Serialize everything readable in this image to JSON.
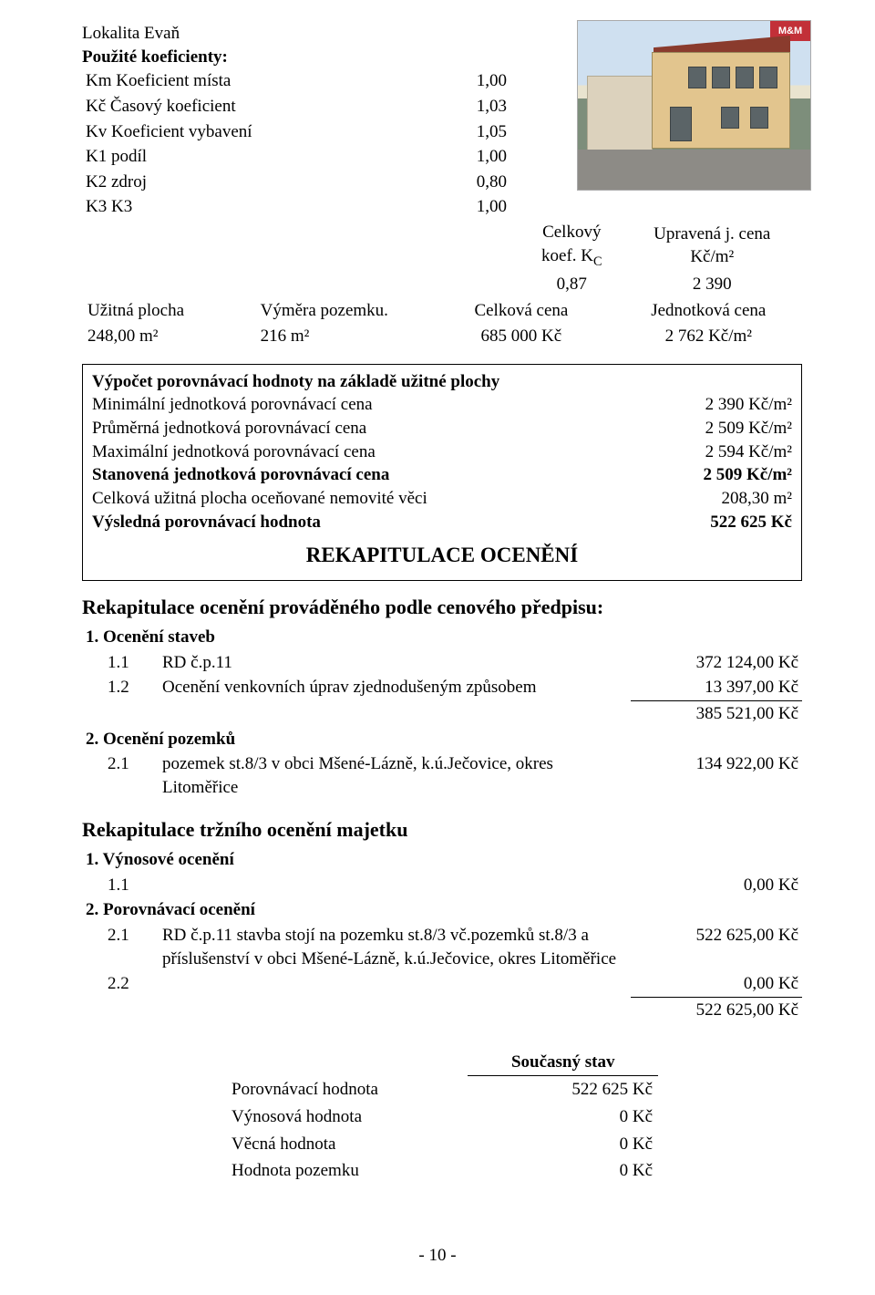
{
  "header": {
    "lokalita_label": "Lokalita Evaň",
    "pouzite_label": "Použité koeficienty:",
    "photo_badge": "M&M",
    "coefs": [
      {
        "label": "Km Koeficient místa",
        "val": "1,00"
      },
      {
        "label": "Kč Časový koeficient",
        "val": "1,03"
      },
      {
        "label": "Kv Koeficient vybavení",
        "val": "1,05"
      },
      {
        "label": "K1 podíl",
        "val": "1,00"
      },
      {
        "label": "K2 zdroj",
        "val": "0,80"
      },
      {
        "label": "K3 K3",
        "val": "1,00"
      }
    ],
    "right_labels": {
      "celkovy": "Celkový",
      "koef_kc": "koef. K",
      "koef_kc_sub": "C",
      "upravena": "Upravená j. cena",
      "kc_m2": "Kč/m²"
    },
    "right_values": {
      "kc": "0,87",
      "unit": "2 390"
    }
  },
  "area_row": {
    "uzitna_lbl": "Užitná plocha",
    "vymera_lbl": "Výměra pozemku.",
    "celkova_lbl": "Celková cena",
    "jednot_lbl": "Jednotková cena",
    "uzitna_v": "248,00 m²",
    "vymera_v": "216 m²",
    "celkova_v": "685 000 Kč",
    "jednot_v": "2 762 Kč/m²"
  },
  "block": {
    "title": "Výpočet porovnávací hodnoty na základě užitné plochy",
    "rows": [
      {
        "l": "Minimální jednotková porovnávací cena",
        "r": "2 390 Kč/m²"
      },
      {
        "l": "Průměrná jednotková porovnávací cena",
        "r": "2 509 Kč/m²"
      },
      {
        "l": "Maximální jednotková porovnávací cena",
        "r": "2 594 Kč/m²"
      }
    ],
    "bold_rows": [
      {
        "l": "Stanovená jednotková porovnávací cena",
        "r": "2 509 Kč/m²"
      }
    ],
    "tail_rows": [
      {
        "l": "Celková užitná plocha oceňované nemovité věci",
        "r": "208,30 m²"
      }
    ],
    "final_row": {
      "l": "Výsledná porovnávací hodnota",
      "r": "522 625 Kč"
    },
    "center": "REKAPITULACE OCENĚNÍ"
  },
  "recap1": {
    "heading": "Rekapitulace ocenění prováděného podle cenového předpisu:",
    "g1": "1. Ocenění staveb",
    "g1_items": [
      {
        "idx": "1.1",
        "txt": "RD č.p.11",
        "amt": "372 124,00 Kč"
      },
      {
        "idx": "1.2",
        "txt": "Ocenění venkovních úprav zjednodušeným způsobem",
        "amt": "13 397,00 Kč"
      }
    ],
    "g1_subtotal": "385 521,00 Kč",
    "g2": "2. Ocenění pozemků",
    "g2_items": [
      {
        "idx": "2.1",
        "txt": "pozemek st.8/3 v obci Mšené-Lázně, k.ú.Ječovice, okres Litoměřice",
        "amt": "134 922,00 Kč"
      }
    ]
  },
  "recap2": {
    "heading": "Rekapitulace tržního ocenění majetku",
    "g1": "1. Výnosové ocenění",
    "g1_items": [
      {
        "idx": "1.1",
        "txt": "",
        "amt": "0,00 Kč"
      }
    ],
    "g2": "2. Porovnávací ocenění",
    "g2_items": [
      {
        "idx": "2.1",
        "txt": "RD č.p.11 stavba stojí na pozemku st.8/3 vč.pozemků st.8/3 a příslušenství v obci Mšené-Lázně, k.ú.Ječovice, okres Litoměřice",
        "amt": "522 625,00 Kč"
      },
      {
        "idx": "2.2",
        "txt": "",
        "amt": "0,00 Kč"
      }
    ],
    "g2_subtotal": "522 625,00 Kč"
  },
  "current": {
    "header": "Současný stav",
    "rows": [
      {
        "l": "Porovnávací hodnota",
        "v": "522 625 Kč"
      },
      {
        "l": "Výnosová hodnota",
        "v": "0 Kč"
      },
      {
        "l": "Věcná hodnota",
        "v": "0 Kč"
      },
      {
        "l": "Hodnota pozemku",
        "v": "0 Kč"
      }
    ]
  },
  "page_num": "- 10 -"
}
